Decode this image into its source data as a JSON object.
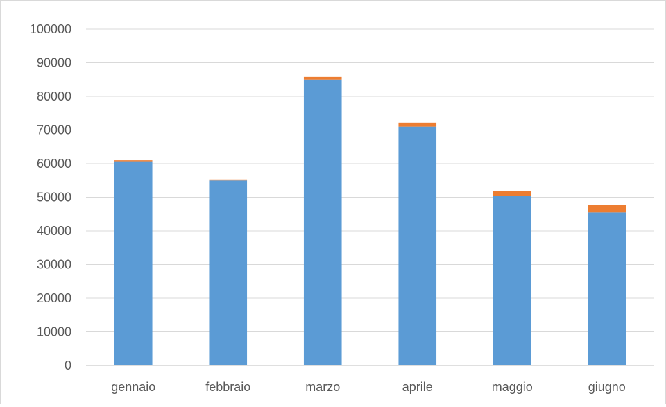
{
  "chart_data": {
    "type": "bar",
    "stacked": true,
    "categories": [
      "gennaio",
      "febbraio",
      "marzo",
      "aprile",
      "maggio",
      "giugno"
    ],
    "series": [
      {
        "values": [
          60700,
          55000,
          85000,
          71000,
          50500,
          45500
        ],
        "color": "#5b9bd5"
      },
      {
        "values": [
          300,
          300,
          800,
          1200,
          1300,
          2200
        ],
        "color": "#ed7d31"
      }
    ],
    "yticks": [
      "0",
      "10000",
      "20000",
      "30000",
      "40000",
      "50000",
      "60000",
      "70000",
      "80000",
      "90000",
      "100000"
    ],
    "ylim": [
      0,
      100000
    ],
    "grid": true,
    "legend": "none"
  }
}
